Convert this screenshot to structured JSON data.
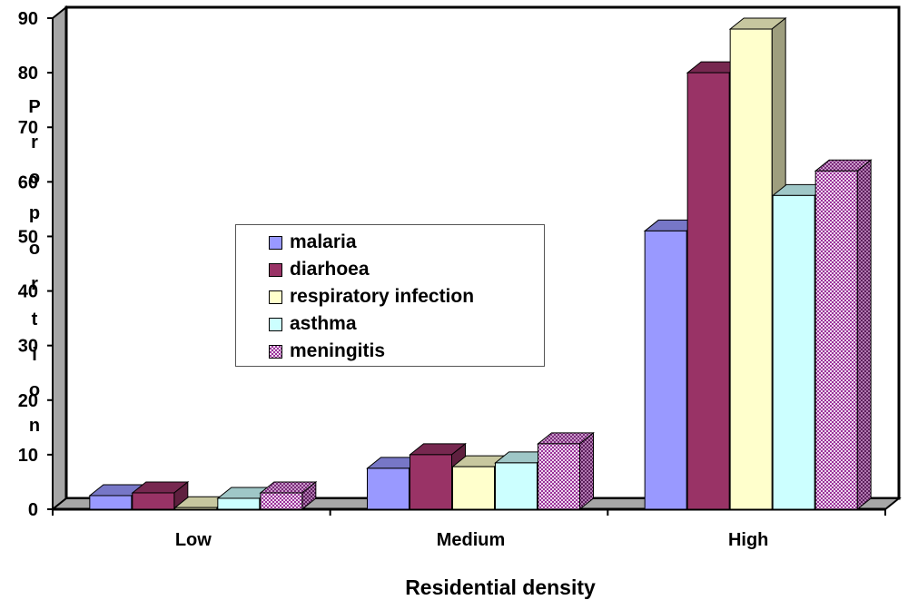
{
  "chart_data": {
    "type": "bar",
    "title": "",
    "xlabel": "Residential density",
    "ylabel": "Proportion",
    "ylabel_letters": [
      "P",
      "r",
      "o",
      "p",
      "o",
      "r",
      "t",
      "i",
      "o",
      "n"
    ],
    "categories": [
      "Low",
      "Medium",
      "High"
    ],
    "ylim": [
      0,
      90
    ],
    "yticks": [
      "0",
      "10",
      "20",
      "30",
      "40",
      "50",
      "60",
      "70",
      "80",
      "90"
    ],
    "grid": false,
    "legend_position": "center-left",
    "series": [
      {
        "name": "malaria",
        "values": [
          2.5,
          7.5,
          51
        ],
        "color": "#9999ff"
      },
      {
        "name": "diarhoea",
        "values": [
          3,
          10,
          80
        ],
        "color": "#993366"
      },
      {
        "name": "respiratory infection",
        "values": [
          0.3,
          7.8,
          88
        ],
        "color": "#ffffcc"
      },
      {
        "name": "asthma",
        "values": [
          2,
          8.5,
          57.5
        ],
        "color": "#ccffff"
      },
      {
        "name": "meningitis",
        "values": [
          3,
          12,
          62
        ],
        "color": "#993399",
        "pattern": "dotted"
      }
    ]
  }
}
